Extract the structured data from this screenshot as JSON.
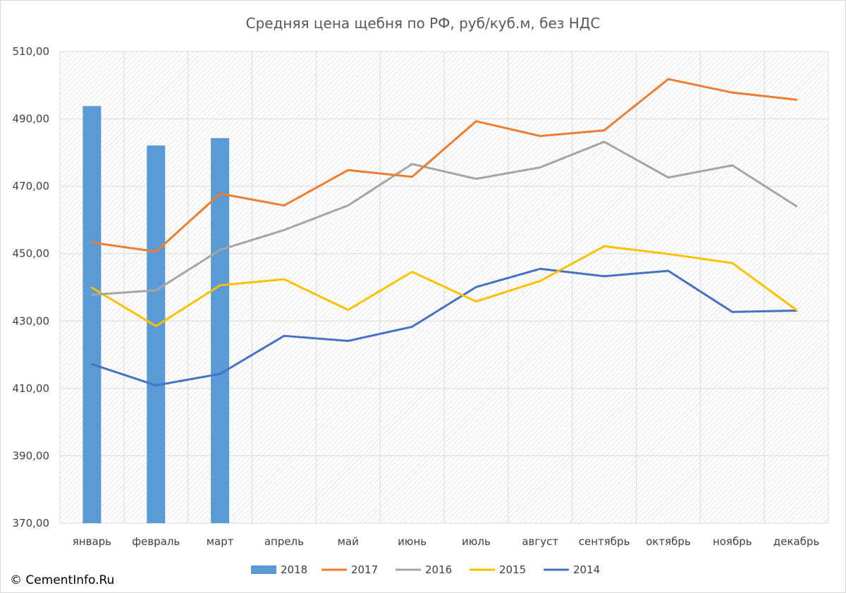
{
  "chart_data": {
    "type": "bar+line",
    "title": "Средняя цена щебня по РФ, руб/куб.м, без НДС",
    "categories": [
      "январь",
      "февраль",
      "март",
      "апрель",
      "май",
      "июнь",
      "июль",
      "август",
      "сентябрь",
      "октябрь",
      "ноябрь",
      "декабрь"
    ],
    "ylim": [
      370,
      510
    ],
    "yticks": [
      370,
      390,
      410,
      430,
      450,
      470,
      490,
      510
    ],
    "ytick_labels": [
      "370,00",
      "390,00",
      "410,00",
      "430,00",
      "450,00",
      "470,00",
      "490,00",
      "510,00"
    ],
    "grid": true,
    "legend_position": "bottom",
    "series": [
      {
        "name": "2018",
        "kind": "bar",
        "color": "#5B9BD5",
        "values": [
          493.8,
          482.1,
          484.3,
          null,
          null,
          null,
          null,
          null,
          null,
          null,
          null,
          null
        ]
      },
      {
        "name": "2017",
        "kind": "line",
        "color": "#ED7D31",
        "values": [
          453.3,
          450.6,
          467.8,
          464.3,
          474.8,
          472.8,
          489.3,
          484.9,
          486.6,
          501.8,
          497.8,
          495.7
        ]
      },
      {
        "name": "2016",
        "kind": "line",
        "color": "#A5A5A5",
        "values": [
          437.8,
          439.1,
          451.1,
          457.0,
          464.3,
          476.6,
          472.2,
          475.6,
          483.2,
          472.6,
          476.2,
          464.1
        ]
      },
      {
        "name": "2015",
        "kind": "line",
        "color": "#FFC000",
        "values": [
          439.9,
          428.5,
          440.6,
          442.4,
          433.3,
          444.6,
          435.8,
          441.9,
          452.2,
          449.9,
          447.2,
          433.3
        ]
      },
      {
        "name": "2014",
        "kind": "line",
        "color": "#4472C4",
        "values": [
          417.2,
          410.9,
          414.3,
          425.6,
          424.1,
          428.3,
          440.1,
          445.5,
          443.3,
          444.9,
          432.7,
          433.1
        ]
      }
    ]
  },
  "copyright": "© CementInfo.Ru"
}
